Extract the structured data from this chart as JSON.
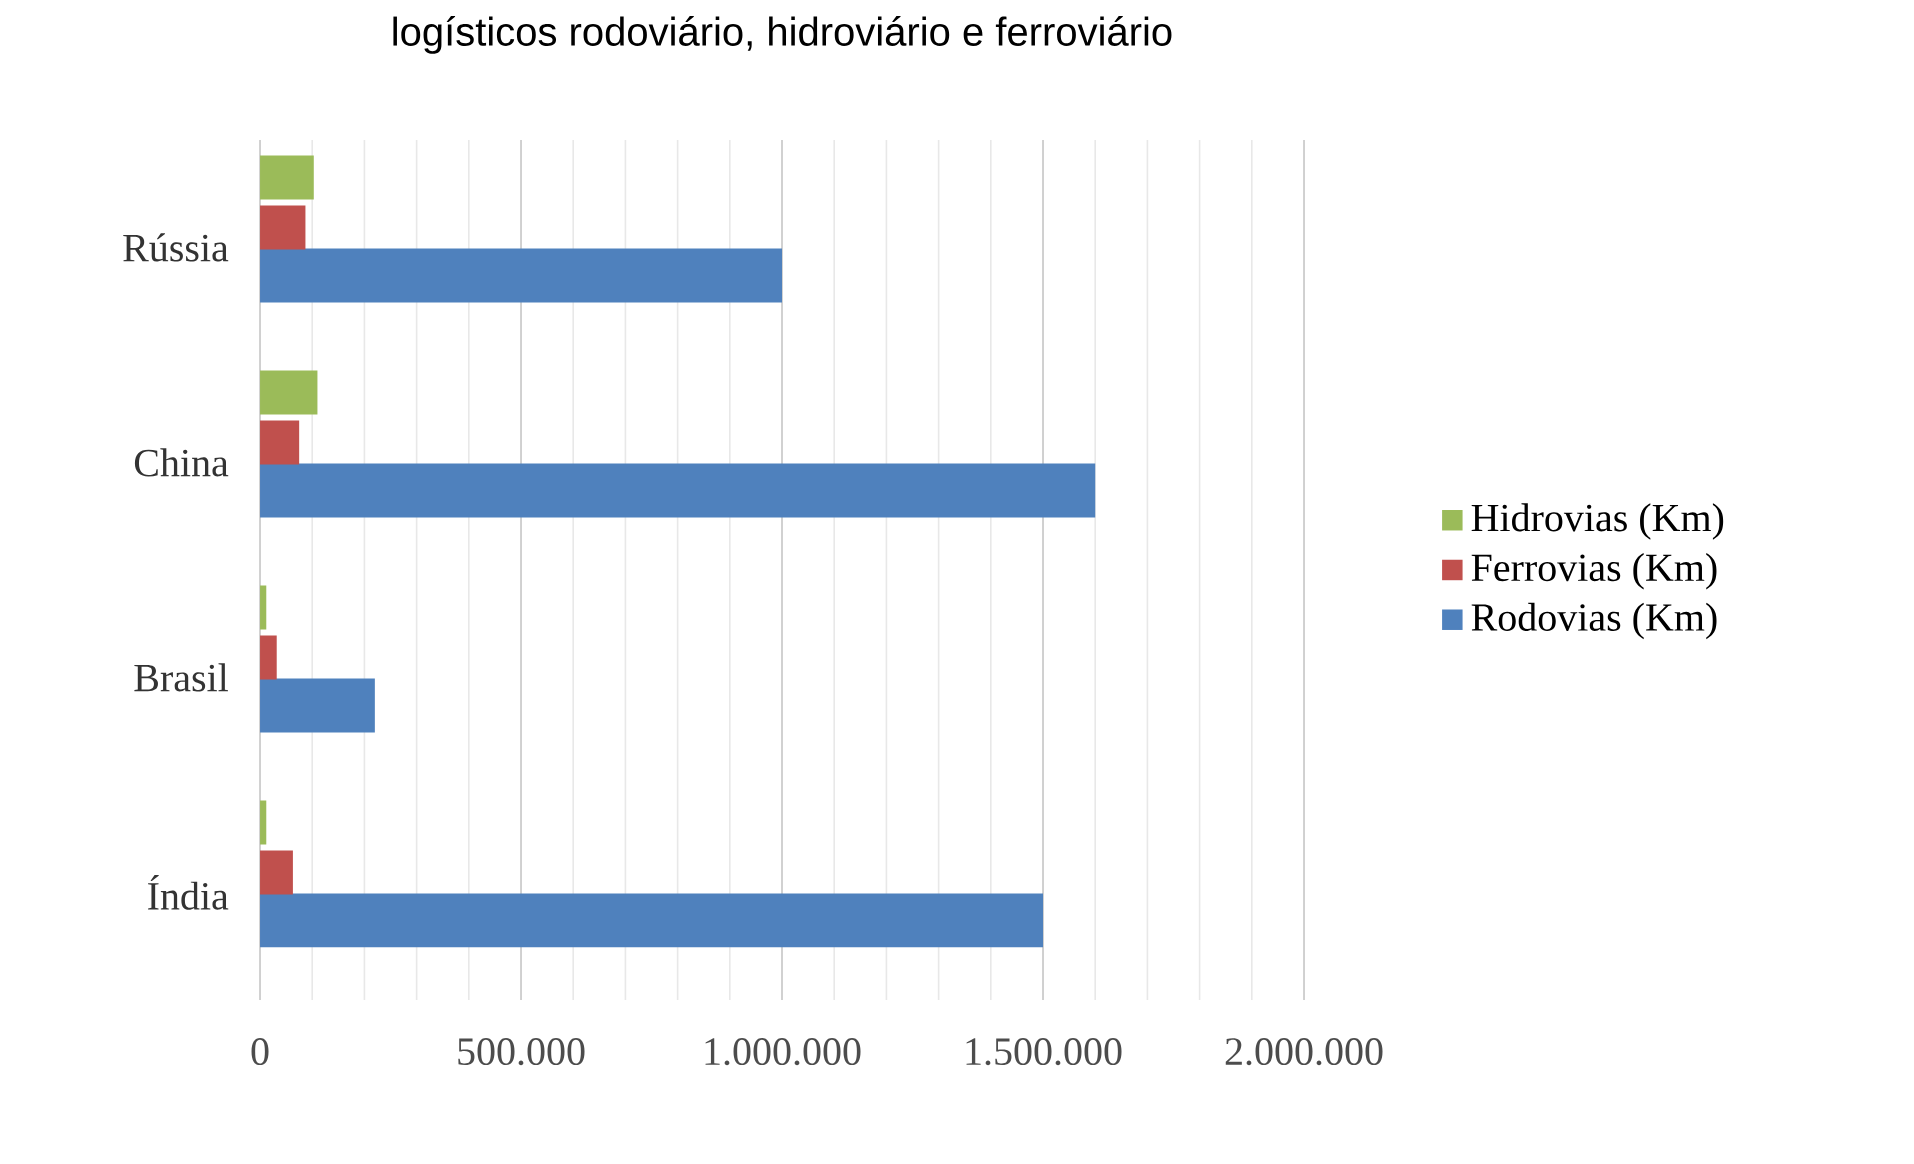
{
  "chart_data": {
    "type": "bar",
    "orientation": "horizontal",
    "title": "logísticos rodoviário, hidroviário e ferroviário",
    "categories": [
      "Rússia",
      "China",
      "Brasil",
      "Índia"
    ],
    "series": [
      {
        "name": "Rodovias (Km)",
        "color": "#4f81bd",
        "values": [
          1000000,
          1600000,
          220000,
          1500000
        ]
      },
      {
        "name": "Ferrovias (Km)",
        "color": "#c0504d",
        "values": [
          87000,
          75000,
          32000,
          63000
        ]
      },
      {
        "name": "Hidrovias (Km)",
        "color": "#9bbb59",
        "values": [
          103000,
          110000,
          12000,
          12000
        ]
      }
    ],
    "xlim": [
      0,
      2000000
    ],
    "xticks": [
      0,
      {
        "value": 500000,
        "label": "500.000"
      },
      {
        "value": 1000000,
        "label": "1.000.000"
      },
      {
        "value": 1500000,
        "label": "1.500.000"
      },
      {
        "value": 2000000,
        "label": "2.000.000"
      }
    ],
    "grid": "x",
    "legend": "right"
  }
}
